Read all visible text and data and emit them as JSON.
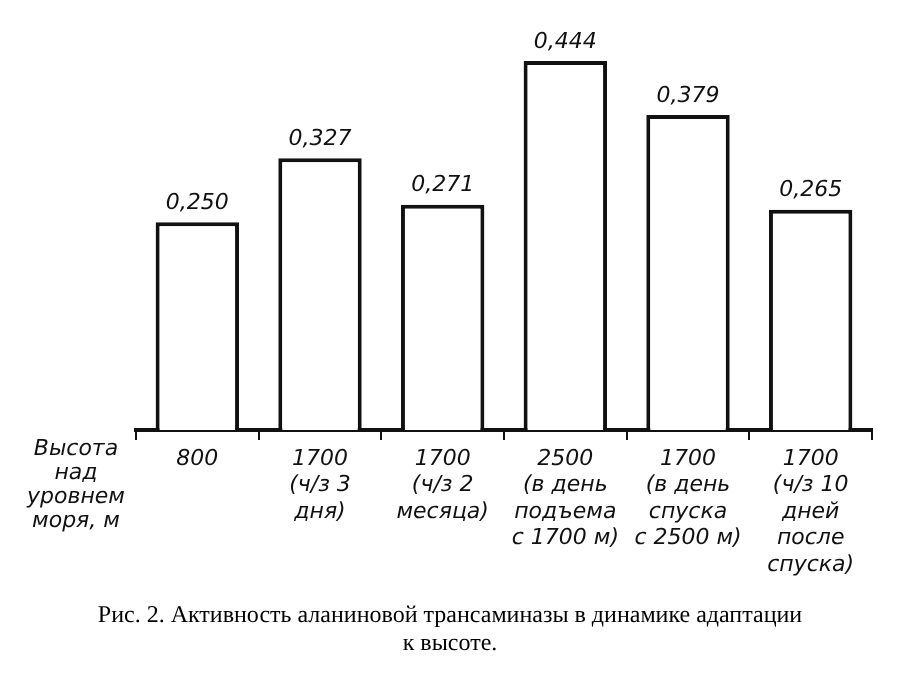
{
  "chart_data": {
    "type": "bar",
    "xlabel": "Высота над уровнем моря, м",
    "categories": [
      "800",
      "1700\n(ч/з 3\nдня)",
      "1700\n(ч/з 2\nмесяца)",
      "2500\n(в день\nподъема\nс 1700 м)",
      "1700\n(в день\nспуска\nс 2500 м)",
      "1700\n(ч/з 10\nдней\nпосле\nспуска)"
    ],
    "values": [
      0.25,
      0.327,
      0.271,
      0.444,
      0.379,
      0.265
    ],
    "value_labels": [
      "0,250",
      "0,327",
      "0,271",
      "0,444",
      "0,379",
      "0,265"
    ],
    "color": "#ffffff",
    "tick_labels": "x",
    "grid": false,
    "legend": false,
    "annotations": [
      "Рис. 2. Активность аланиновой трансаминазы в динамике адаптации к высоте."
    ]
  }
}
